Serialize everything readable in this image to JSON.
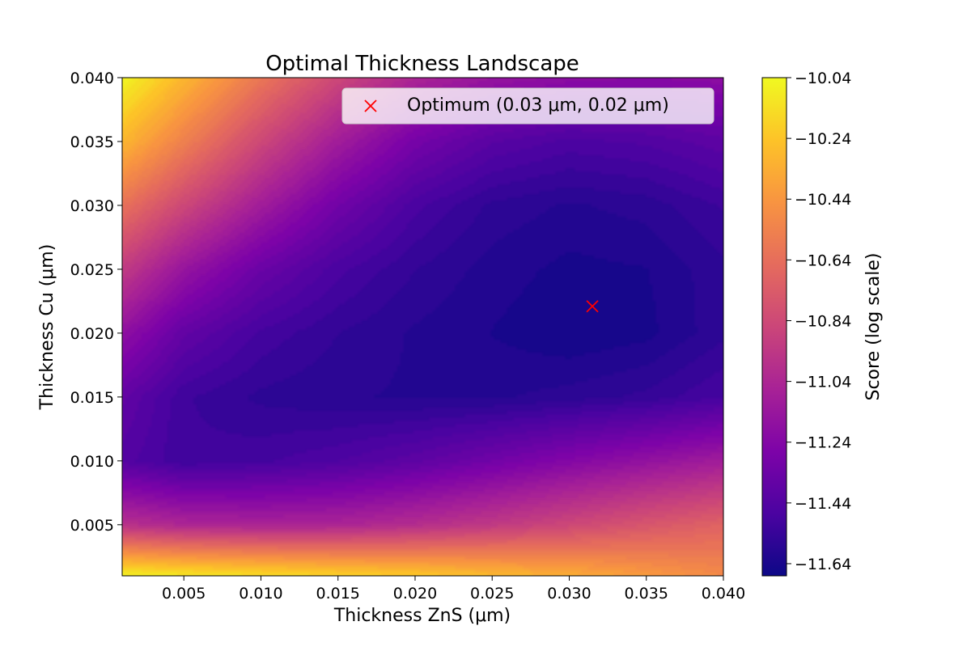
{
  "chart_data": {
    "type": "heatmap",
    "title": "Optimal Thickness Landscape",
    "xlabel": "Thickness ZnS (μm)",
    "ylabel": "Thickness Cu (μm)",
    "colorbar_label": "Score (log scale)",
    "colormap": "plasma",
    "xlim": [
      0.001,
      0.04
    ],
    "ylim": [
      0.001,
      0.04
    ],
    "x_ticks": [
      0.005,
      0.01,
      0.015,
      0.02,
      0.025,
      0.03,
      0.035,
      0.04
    ],
    "x_tick_labels": [
      "0.005",
      "0.010",
      "0.015",
      "0.020",
      "0.025",
      "0.030",
      "0.035",
      "0.040"
    ],
    "y_ticks": [
      0.005,
      0.01,
      0.015,
      0.02,
      0.025,
      0.03,
      0.035,
      0.04
    ],
    "y_tick_labels": [
      "0.005",
      "0.010",
      "0.015",
      "0.020",
      "0.025",
      "0.030",
      "0.035",
      "0.040"
    ],
    "colorbar_range": [
      -11.68,
      -10.04
    ],
    "colorbar_ticks": [
      -10.04,
      -10.24,
      -10.44,
      -10.64,
      -10.84,
      -11.04,
      -11.24,
      -11.44,
      -11.64
    ],
    "colorbar_tick_labels": [
      "−10.04",
      "−10.24",
      "−10.44",
      "−10.64",
      "−10.84",
      "−11.04",
      "−11.24",
      "−11.44",
      "−11.64"
    ],
    "optimum": {
      "x": 0.0315,
      "y": 0.0221,
      "marker": "x",
      "color": "#ff0000"
    },
    "legend": {
      "label": "Optimum (0.03 μm, 0.02 μm)",
      "location": "upper-right"
    },
    "grid": false,
    "sample_values": {
      "description_of_grid": "approximate log-score values",
      "x": [
        0.001,
        0.005,
        0.01,
        0.015,
        0.02,
        0.025,
        0.03,
        0.035,
        0.04
      ],
      "y": [
        0.04,
        0.035,
        0.03,
        0.025,
        0.02,
        0.015,
        0.01,
        0.005,
        0.001
      ],
      "z": [
        [
          -10.05,
          -10.3,
          -10.6,
          -10.85,
          -11.05,
          -11.15,
          -11.2,
          -11.22,
          -11.2
        ],
        [
          -10.3,
          -10.55,
          -10.85,
          -11.1,
          -11.3,
          -11.42,
          -11.47,
          -11.45,
          -11.4
        ],
        [
          -10.62,
          -10.85,
          -11.1,
          -11.32,
          -11.48,
          -11.57,
          -11.6,
          -11.58,
          -11.52
        ],
        [
          -10.92,
          -11.15,
          -11.35,
          -11.48,
          -11.56,
          -11.61,
          -11.64,
          -11.63,
          -11.57
        ],
        [
          -11.18,
          -11.38,
          -11.5,
          -11.56,
          -11.6,
          -11.63,
          -11.66,
          -11.64,
          -11.57
        ],
        [
          -11.38,
          -11.52,
          -11.57,
          -11.59,
          -11.6,
          -11.6,
          -11.58,
          -11.55,
          -11.49
        ],
        [
          -11.44,
          -11.52,
          -11.5,
          -11.46,
          -11.4,
          -11.32,
          -11.24,
          -11.17,
          -11.1
        ],
        [
          -10.98,
          -11.04,
          -11.06,
          -11.05,
          -11.0,
          -10.93,
          -10.85,
          -10.77,
          -10.7
        ],
        [
          -10.06,
          -10.1,
          -10.14,
          -10.18,
          -10.22,
          -10.28,
          -10.34,
          -10.42,
          -10.5
        ]
      ]
    }
  }
}
